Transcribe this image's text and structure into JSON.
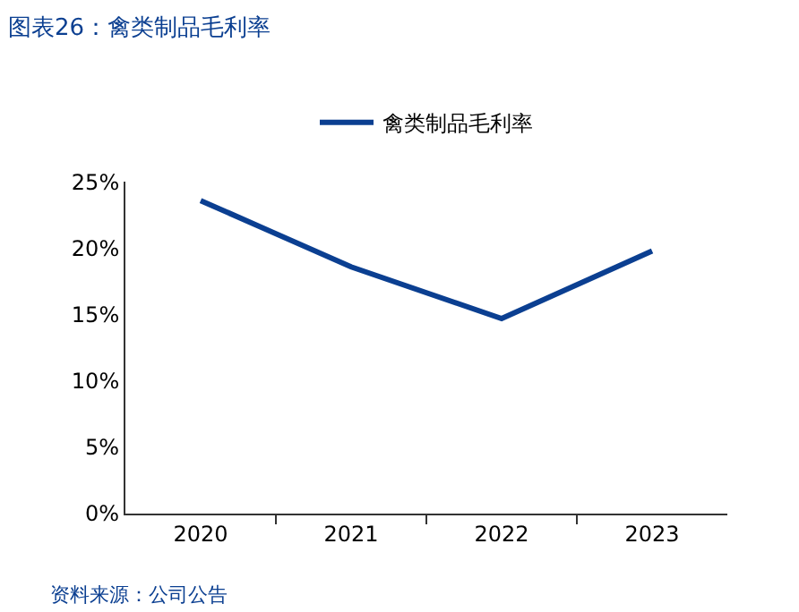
{
  "chart_data": {
    "type": "line",
    "title": "图表26：禽类制品毛利率",
    "categories": [
      "2020",
      "2021",
      "2022",
      "2023"
    ],
    "series": [
      {
        "name": "禽类制品毛利率",
        "color": "#0b3f91",
        "values": [
          23.6,
          18.6,
          14.7,
          19.8
        ]
      }
    ],
    "ylim": [
      0,
      25
    ],
    "yticks": [
      {
        "value": 0,
        "label": "0%"
      },
      {
        "value": 5,
        "label": "5%"
      },
      {
        "value": 10,
        "label": "10%"
      },
      {
        "value": 15,
        "label": "15%"
      },
      {
        "value": 20,
        "label": "20%"
      },
      {
        "value": 25,
        "label": "25%"
      }
    ],
    "legend": "top",
    "marker": "none",
    "line_style": "solid",
    "annotations": [
      "资料来源：公司公告"
    ]
  }
}
